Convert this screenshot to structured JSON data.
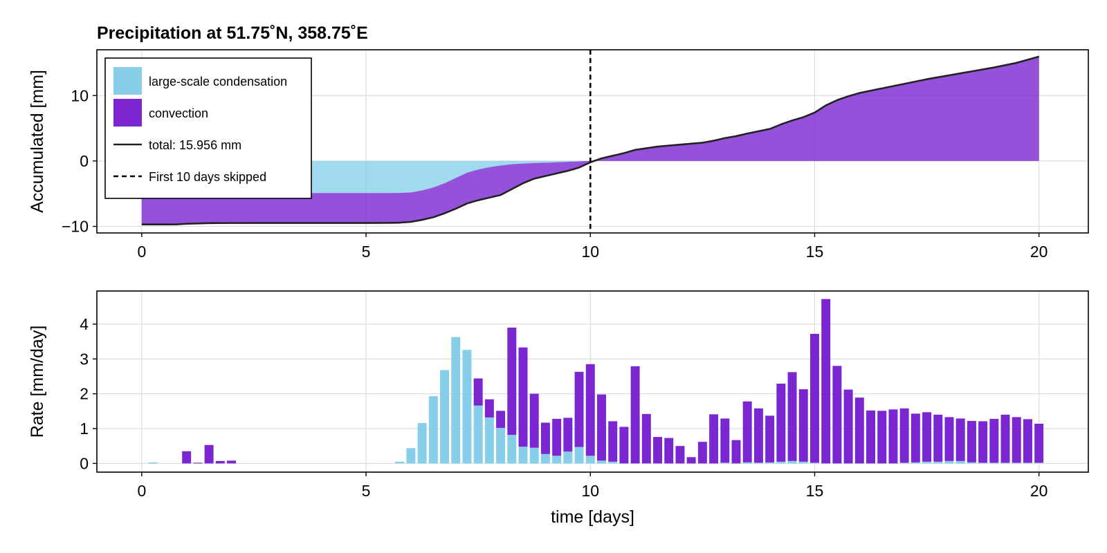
{
  "chart_data": [
    {
      "type": "area",
      "title": "Precipitation at 51.75˚N, 358.75˚E",
      "xlabel": "",
      "ylabel": "Accumulated [mm]",
      "xlim": [
        -1,
        21.1
      ],
      "ylim": [
        -11,
        17
      ],
      "xticks": [
        0,
        5,
        10,
        15,
        20
      ],
      "xtick_labels": [
        "0",
        "5",
        "10",
        "15",
        "20"
      ],
      "yticks": [
        -10,
        0,
        10
      ],
      "ytick_labels": [
        "−10",
        "0",
        "10"
      ],
      "grid": true,
      "vline": {
        "x": 10,
        "style": "dashed",
        "label": "First 10 days skipped"
      },
      "legend": {
        "placement": "top-left",
        "entries": [
          {
            "label": "large-scale condensation",
            "color": "#87ceeb",
            "kind": "patch"
          },
          {
            "label": "convection",
            "color": "#7b26d0",
            "kind": "patch"
          },
          {
            "label": "total: 15.956 mm",
            "color": "#222222",
            "kind": "line"
          },
          {
            "label": "First 10 days skipped",
            "color": "#000000",
            "kind": "dashed"
          }
        ]
      },
      "series": [
        {
          "name": "large-scale condensation",
          "color": "#87ceeb",
          "x": [
            0,
            1,
            2,
            3,
            4,
            5,
            5.5,
            5.75,
            6,
            6.25,
            6.5,
            6.75,
            7,
            7.25,
            7.5,
            7.75,
            8,
            8.25,
            8.5,
            8.75,
            9,
            9.25,
            9.5,
            9.75,
            10,
            20
          ],
          "y": [
            -4.9,
            -4.9,
            -4.9,
            -4.9,
            -4.9,
            -4.9,
            -4.9,
            -4.88,
            -4.8,
            -4.5,
            -4.05,
            -3.4,
            -2.6,
            -1.8,
            -1.3,
            -0.95,
            -0.7,
            -0.5,
            -0.4,
            -0.32,
            -0.26,
            -0.2,
            -0.13,
            -0.07,
            0,
            0
          ]
        },
        {
          "name": "total: 15.956 mm",
          "color": "#222222",
          "x": [
            0,
            0.75,
            1.0,
            1.5,
            2,
            3,
            4,
            5,
            5.5,
            5.75,
            6,
            6.25,
            6.5,
            6.75,
            7,
            7.25,
            7.5,
            7.75,
            8,
            8.25,
            8.5,
            8.75,
            9,
            9.25,
            9.5,
            9.75,
            10,
            10.25,
            10.5,
            10.75,
            11,
            11.5,
            12,
            12.5,
            12.75,
            13,
            13.25,
            13.5,
            14,
            14.25,
            14.5,
            14.75,
            15,
            15.25,
            15.5,
            15.75,
            16,
            16.5,
            17,
            17.5,
            18,
            18.5,
            19,
            19.5,
            20
          ],
          "y": [
            -9.7,
            -9.7,
            -9.6,
            -9.5,
            -9.48,
            -9.47,
            -9.47,
            -9.47,
            -9.46,
            -9.43,
            -9.3,
            -9.0,
            -8.6,
            -8.0,
            -7.3,
            -6.5,
            -6.0,
            -5.6,
            -5.2,
            -4.3,
            -3.4,
            -2.7,
            -2.3,
            -1.9,
            -1.5,
            -1.0,
            -0.2,
            0.4,
            0.8,
            1.2,
            1.7,
            2.2,
            2.5,
            2.8,
            3.1,
            3.5,
            3.8,
            4.2,
            4.9,
            5.6,
            6.2,
            6.7,
            7.4,
            8.5,
            9.3,
            9.9,
            10.4,
            11.1,
            11.8,
            12.5,
            13.1,
            13.7,
            14.3,
            15.0,
            15.956
          ]
        }
      ]
    },
    {
      "type": "bar",
      "xlabel": "time [days]",
      "ylabel": "Rate [mm/day]",
      "xlim": [
        -1,
        21.1
      ],
      "ylim": [
        -0.25,
        4.95
      ],
      "xticks": [
        0,
        5,
        10,
        15,
        20
      ],
      "xtick_labels": [
        "0",
        "5",
        "10",
        "15",
        "20"
      ],
      "yticks": [
        0,
        1,
        2,
        3,
        4
      ],
      "ytick_labels": [
        "0",
        "1",
        "2",
        "3",
        "4"
      ],
      "grid": true,
      "stacked": true,
      "bar_width": 0.2,
      "x": [
        0,
        0.25,
        0.5,
        0.75,
        1,
        1.25,
        1.5,
        1.75,
        2,
        2.25,
        2.5,
        2.75,
        3,
        3.25,
        3.5,
        3.75,
        4,
        4.25,
        4.5,
        4.75,
        5,
        5.25,
        5.5,
        5.75,
        6,
        6.25,
        6.5,
        6.75,
        7,
        7.25,
        7.5,
        7.75,
        8,
        8.25,
        8.5,
        8.75,
        9,
        9.25,
        9.5,
        9.75,
        10,
        10.25,
        10.5,
        10.75,
        11,
        11.25,
        11.5,
        11.75,
        12,
        12.25,
        12.5,
        12.75,
        13,
        13.25,
        13.5,
        13.75,
        14,
        14.25,
        14.5,
        14.75,
        15,
        15.25,
        15.5,
        15.75,
        16,
        16.25,
        16.5,
        16.75,
        17,
        17.25,
        17.5,
        17.75,
        18,
        18.25,
        18.5,
        18.75,
        19,
        19.25,
        19.5,
        19.75,
        20
      ],
      "series": [
        {
          "name": "large-scale condensation",
          "color": "#87ceeb",
          "values": [
            0,
            0.03,
            0,
            0,
            0,
            0,
            0,
            0,
            0,
            0,
            0,
            0,
            0,
            0,
            0,
            0,
            0,
            0,
            0,
            0,
            0,
            0,
            0,
            0.05,
            0.44,
            1.16,
            1.93,
            2.68,
            3.63,
            3.26,
            1.66,
            1.32,
            1.02,
            0.82,
            0.48,
            0.45,
            0.27,
            0.22,
            0.34,
            0.47,
            0.22,
            0.08,
            0.05,
            0,
            0,
            0,
            0,
            0,
            0,
            0,
            0,
            0,
            0.02,
            0,
            0.03,
            0.02,
            0.03,
            0.05,
            0.07,
            0.05,
            0.02,
            0,
            0,
            0,
            0,
            0,
            0,
            0,
            0.02,
            0.03,
            0.05,
            0.05,
            0.07,
            0.07,
            0.03,
            0.02,
            0.02,
            0.02,
            0.02,
            0.02,
            0.02
          ]
        },
        {
          "name": "convection",
          "color": "#7b26d0",
          "values": [
            0,
            0,
            0,
            0,
            0.35,
            0.02,
            0.53,
            0.07,
            0.08,
            0,
            0,
            0,
            0,
            0,
            0,
            0,
            0,
            0,
            0,
            0,
            0,
            0,
            0,
            0,
            0,
            0,
            0,
            0,
            0,
            0,
            0.78,
            0.52,
            0.49,
            3.08,
            2.85,
            1.55,
            0.9,
            1.06,
            0.97,
            2.16,
            2.63,
            1.9,
            1.16,
            1.05,
            2.79,
            1.42,
            0.76,
            0.73,
            0.5,
            0.18,
            0.62,
            1.41,
            1.27,
            0.67,
            1.75,
            1.56,
            1.34,
            2.24,
            2.55,
            2.08,
            3.7,
            4.72,
            2.8,
            2.12,
            1.89,
            1.52,
            1.51,
            1.55,
            1.56,
            1.4,
            1.42,
            1.35,
            1.26,
            1.22,
            1.19,
            1.19,
            1.26,
            1.38,
            1.31,
            1.25,
            1.12
          ]
        }
      ]
    }
  ]
}
